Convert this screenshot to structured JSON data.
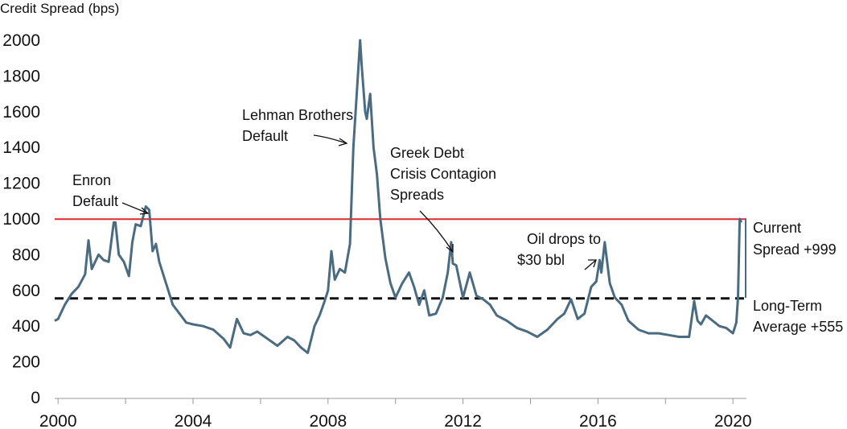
{
  "chart_data": {
    "type": "line",
    "ylabel": "Credit Spread (bps)",
    "xlabel": "",
    "ylim": [
      0,
      2000
    ],
    "xlim": [
      1999.9,
      2020.4
    ],
    "y_ticks": [
      "0",
      "200",
      "400",
      "600",
      "800",
      "1000",
      "1200",
      "1400",
      "1600",
      "1800",
      "2000"
    ],
    "x_ticks": [
      "2000",
      "2004",
      "2008",
      "2012",
      "2016",
      "2020"
    ],
    "grid": false,
    "legend": "none",
    "series": [
      {
        "color": "#4a6b80",
        "x": [
          1999.9,
          2000.0,
          2000.2,
          2000.4,
          2000.6,
          2000.8,
          2000.9,
          2001.0,
          2001.1,
          2001.2,
          2001.35,
          2001.5,
          2001.65,
          2001.7,
          2001.8,
          2001.95,
          2002.1,
          2002.2,
          2002.3,
          2002.45,
          2002.6,
          2002.7,
          2002.8,
          2002.9,
          2003.0,
          2003.2,
          2003.4,
          2003.6,
          2003.8,
          2004.0,
          2004.3,
          2004.6,
          2004.9,
          2005.1,
          2005.3,
          2005.5,
          2005.7,
          2005.9,
          2006.2,
          2006.5,
          2006.8,
          2007.0,
          2007.2,
          2007.4,
          2007.6,
          2007.75,
          2007.9,
          2008.0,
          2008.1,
          2008.2,
          2008.35,
          2008.5,
          2008.65,
          2008.75,
          2008.85,
          2008.95,
          2009.0,
          2009.1,
          2009.15,
          2009.25,
          2009.35,
          2009.45,
          2009.55,
          2009.7,
          2009.85,
          2010.0,
          2010.2,
          2010.4,
          2010.55,
          2010.7,
          2010.85,
          2011.0,
          2011.2,
          2011.4,
          2011.55,
          2011.65,
          2011.7,
          2011.8,
          2011.9,
          2012.0,
          2012.2,
          2012.4,
          2012.6,
          2012.8,
          2013.0,
          2013.3,
          2013.6,
          2013.9,
          2014.2,
          2014.5,
          2014.8,
          2015.0,
          2015.2,
          2015.4,
          2015.6,
          2015.8,
          2015.95,
          2016.05,
          2016.1,
          2016.2,
          2016.35,
          2016.5,
          2016.7,
          2016.9,
          2017.2,
          2017.5,
          2017.8,
          2018.1,
          2018.4,
          2018.7,
          2018.85,
          2018.95,
          2019.05,
          2019.2,
          2019.4,
          2019.6,
          2019.8,
          2020.0,
          2020.1,
          2020.15,
          2020.2,
          2020.25
        ],
        "y": [
          430,
          440,
          520,
          580,
          620,
          690,
          880,
          720,
          760,
          800,
          770,
          760,
          980,
          980,
          800,
          760,
          680,
          870,
          970,
          960,
          1070,
          1050,
          820,
          860,
          760,
          640,
          520,
          470,
          420,
          410,
          400,
          380,
          330,
          280,
          440,
          360,
          350,
          370,
          330,
          290,
          340,
          320,
          280,
          250,
          400,
          460,
          540,
          600,
          820,
          660,
          720,
          700,
          860,
          1400,
          1700,
          2000,
          1850,
          1600,
          1560,
          1700,
          1400,
          1250,
          1000,
          780,
          640,
          560,
          640,
          700,
          620,
          520,
          600,
          460,
          470,
          560,
          700,
          870,
          750,
          740,
          650,
          560,
          700,
          570,
          550,
          520,
          460,
          430,
          390,
          370,
          340,
          380,
          440,
          470,
          550,
          440,
          470,
          620,
          650,
          770,
          700,
          870,
          640,
          560,
          520,
          430,
          380,
          360,
          360,
          350,
          340,
          340,
          540,
          430,
          410,
          460,
          430,
          400,
          390,
          360,
          420,
          560,
          1000,
          980
        ]
      }
    ],
    "reference_lines": [
      {
        "value": 999,
        "style": "solid",
        "color": "#e0282e"
      },
      {
        "value": 555,
        "style": "dashed",
        "color": "#111111"
      }
    ],
    "annotations": {
      "enron": [
        "Enron",
        "Default"
      ],
      "lehman": [
        "Lehman Brothers",
        "Default"
      ],
      "greek": [
        "Greek Debt",
        "Crisis Contagion",
        "Spreads"
      ],
      "oil": [
        "Oil drops to",
        "$30 bbl"
      ],
      "current": [
        "Current",
        "Spread +999"
      ],
      "average": [
        "Long-Term",
        "Average +555"
      ]
    }
  }
}
